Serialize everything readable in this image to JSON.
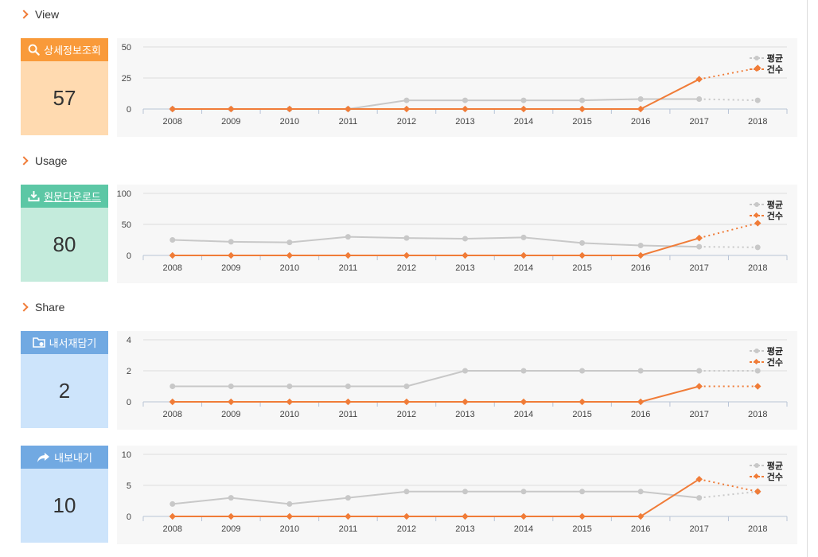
{
  "sections": [
    {
      "title": "View",
      "card": {
        "label": "상세정보조회",
        "icon": "search-icon",
        "value": "57",
        "head_color": "#f99a3a",
        "body_color": "#ffdab0"
      },
      "chart_data": {
        "type": "line",
        "categories": [
          "2008",
          "2009",
          "2010",
          "2011",
          "2012",
          "2013",
          "2014",
          "2015",
          "2016",
          "2017",
          "2018"
        ],
        "yticks": [
          "0",
          "25",
          "50"
        ],
        "ylim": [
          0,
          50
        ],
        "series": [
          {
            "name": "평균",
            "color": "#c8c8c8",
            "values": [
              0,
              0,
              0,
              0,
              7,
              7,
              7,
              7,
              8,
              8,
              7
            ]
          },
          {
            "name": "건수",
            "color": "#f07c38",
            "values": [
              0,
              0,
              0,
              0,
              0,
              0,
              0,
              0,
              0,
              24,
              33
            ]
          }
        ]
      }
    },
    {
      "title": "Usage",
      "card": {
        "label": "원문다운로드",
        "icon": "download-icon",
        "value": "80",
        "head_color": "#5cc7a5",
        "body_color": "#c4ebdc"
      },
      "chart_data": {
        "type": "line",
        "categories": [
          "2008",
          "2009",
          "2010",
          "2011",
          "2012",
          "2013",
          "2014",
          "2015",
          "2016",
          "2017",
          "2018"
        ],
        "yticks": [
          "0",
          "50",
          "100"
        ],
        "ylim": [
          0,
          100
        ],
        "series": [
          {
            "name": "평균",
            "color": "#c8c8c8",
            "values": [
              25,
              22,
              21,
              30,
              28,
              27,
              29,
              20,
              16,
              14,
              13
            ]
          },
          {
            "name": "건수",
            "color": "#f07c38",
            "values": [
              0,
              0,
              0,
              0,
              0,
              0,
              0,
              0,
              0,
              28,
              52
            ]
          }
        ]
      }
    },
    {
      "title": "Share",
      "card": {
        "label": "내서재담기",
        "icon": "folder-icon",
        "value": "2",
        "head_color": "#71a9e2",
        "body_color": "#cde4fb"
      },
      "chart_data": {
        "type": "line",
        "categories": [
          "2008",
          "2009",
          "2010",
          "2011",
          "2012",
          "2013",
          "2014",
          "2015",
          "2016",
          "2017",
          "2018"
        ],
        "yticks": [
          "0",
          "2",
          "4"
        ],
        "ylim": [
          0,
          4
        ],
        "series": [
          {
            "name": "평균",
            "color": "#c8c8c8",
            "values": [
              1,
              1,
              1,
              1,
              1,
              2,
              2,
              2,
              2,
              2,
              2
            ]
          },
          {
            "name": "건수",
            "color": "#f07c38",
            "values": [
              0,
              0,
              0,
              0,
              0,
              0,
              0,
              0,
              0,
              1,
              1
            ]
          }
        ]
      }
    },
    {
      "title": "",
      "card": {
        "label": "내보내기",
        "icon": "share-arrow-icon",
        "value": "10",
        "head_color": "#71a9e2",
        "body_color": "#cde4fb"
      },
      "chart_data": {
        "type": "line",
        "categories": [
          "2008",
          "2009",
          "2010",
          "2011",
          "2012",
          "2013",
          "2014",
          "2015",
          "2016",
          "2017",
          "2018"
        ],
        "yticks": [
          "0",
          "5",
          "10"
        ],
        "ylim": [
          0,
          10
        ],
        "series": [
          {
            "name": "평균",
            "color": "#c8c8c8",
            "values": [
              2,
              3,
              2,
              3,
              4,
              4,
              4,
              4,
              4,
              3,
              4
            ]
          },
          {
            "name": "건수",
            "color": "#f07c38",
            "values": [
              0,
              0,
              0,
              0,
              0,
              0,
              0,
              0,
              0,
              6,
              4
            ]
          }
        ]
      }
    }
  ]
}
